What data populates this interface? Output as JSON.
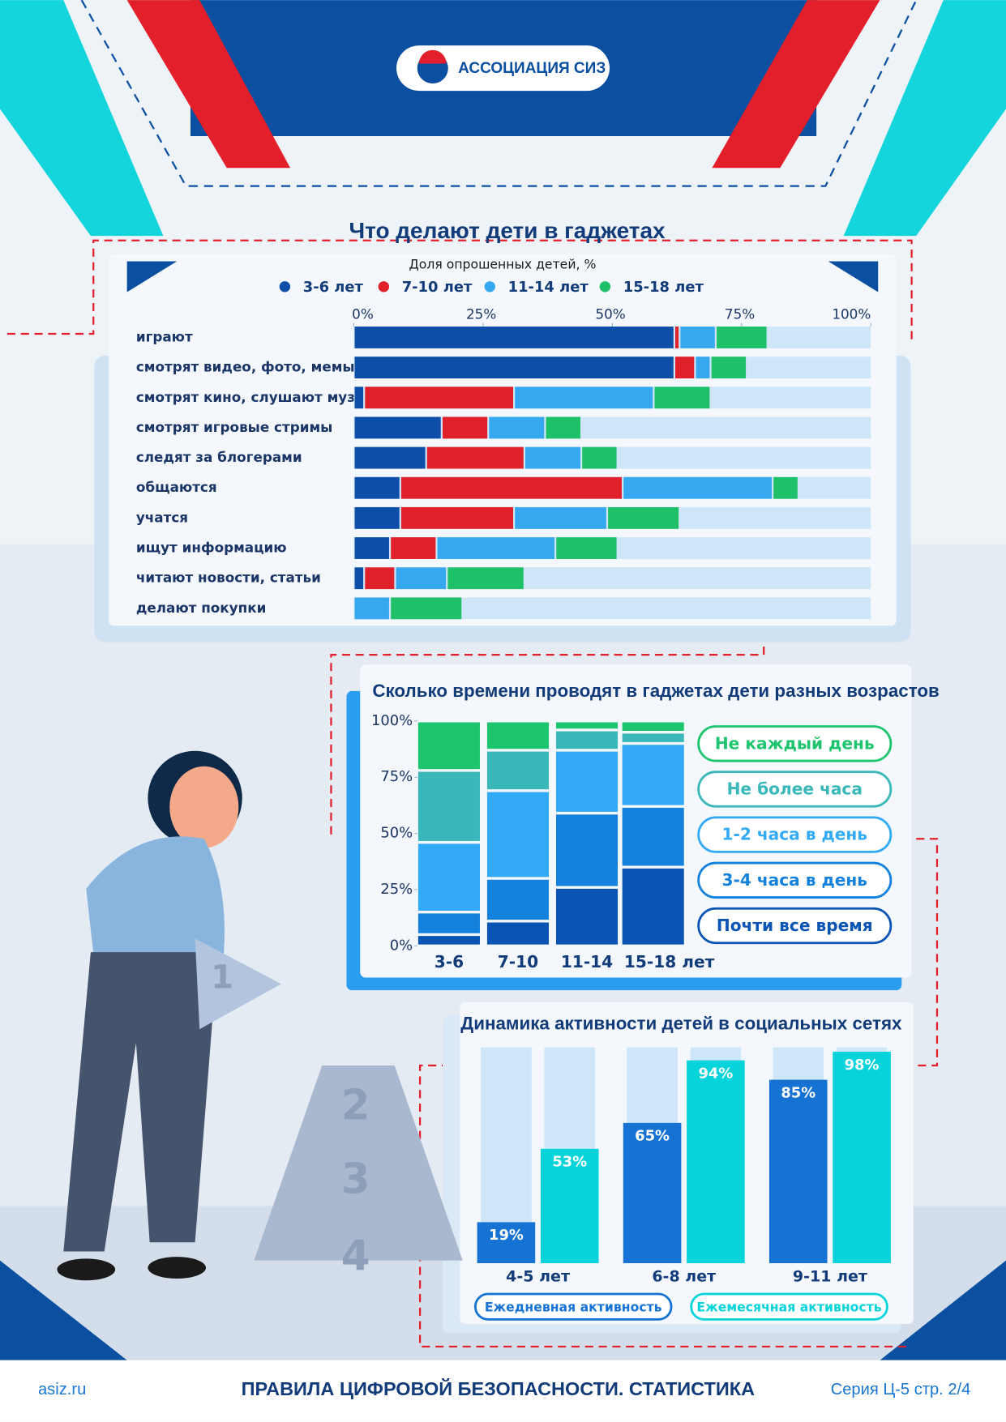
{
  "header": {
    "logo_text": "АССОЦИАЦИЯ СИЗ"
  },
  "illustration": {
    "pyramid_labels": [
      "1",
      "2",
      "3",
      "4"
    ]
  },
  "chart_data": [
    {
      "type": "bar",
      "orientation": "horizontal",
      "stacked": true,
      "title": "Что делают дети в гаджетах",
      "subtitle": "Доля опрошенных детей, %",
      "categories": [
        "играют",
        "смотрят видео, фото, мемы",
        "смотрят кино, слушают музыку",
        "смотрят игровые стримы",
        "следят за блогерами",
        "общаются",
        "учатся",
        "ищут информацию",
        "читают новости, статьи",
        "делают покупки"
      ],
      "series": [
        {
          "name": "3-6 лет",
          "color": "#0d4fa8",
          "values": [
            62,
            62,
            2,
            17,
            14,
            9,
            9,
            7,
            2,
            0
          ]
        },
        {
          "name": "7-10 лет",
          "color": "#e0212b",
          "values": [
            1,
            4,
            29,
            9,
            19,
            43,
            22,
            9,
            6,
            0
          ]
        },
        {
          "name": "11-14 лет",
          "color": "#35a8f0",
          "values": [
            7,
            3,
            27,
            11,
            11,
            29,
            18,
            23,
            10,
            7
          ]
        },
        {
          "name": "15-18 лет",
          "color": "#1fc06a",
          "values": [
            10,
            7,
            11,
            7,
            7,
            5,
            14,
            12,
            15,
            14
          ]
        }
      ],
      "xlim": [
        0,
        100
      ],
      "xticks": [
        {
          "value": 0,
          "label": "0%"
        },
        {
          "value": 25,
          "label": "25%"
        },
        {
          "value": 50,
          "label": "50%"
        },
        {
          "value": 75,
          "label": "75%"
        },
        {
          "value": 100,
          "label": "100%"
        }
      ]
    },
    {
      "type": "bar",
      "orientation": "vertical",
      "stacked": true,
      "title": "Сколько времени проводят в гаджетах дети разных возрастов",
      "categories": [
        "3-6",
        "7-10",
        "11-14",
        "15-18 лет"
      ],
      "series": [
        {
          "name": "Не каждый день",
          "color": "#1ec56e",
          "values": [
            22,
            13,
            4,
            5
          ]
        },
        {
          "name": "Не более часа",
          "color": "#3ab7b8",
          "values": [
            32,
            18,
            9,
            5
          ]
        },
        {
          "name": "1-2 часа в день",
          "color": "#33aaf5",
          "values": [
            31,
            39,
            28,
            28
          ]
        },
        {
          "name": "3-4 часа в день",
          "color": "#1482dc",
          "values": [
            10,
            19,
            33,
            27
          ]
        },
        {
          "name": "Почти все время",
          "color": "#0a55b3",
          "values": [
            5,
            11,
            26,
            35
          ]
        }
      ],
      "ylim": [
        0,
        100
      ],
      "yticks": [
        {
          "value": 0,
          "label": "0%"
        },
        {
          "value": 25,
          "label": "25%"
        },
        {
          "value": 50,
          "label": "50%"
        },
        {
          "value": 75,
          "label": "75%"
        },
        {
          "value": 100,
          "label": "100%"
        }
      ]
    },
    {
      "type": "bar",
      "orientation": "vertical",
      "stacked": false,
      "title": "Динамика активности детей в социальных сетях",
      "categories": [
        "4-5 лет",
        "6-8 лет",
        "9-11 лет"
      ],
      "series": [
        {
          "name": "Ежедневная активность",
          "color": "#1673d4",
          "values": [
            19,
            65,
            85
          ],
          "value_labels": [
            "19%",
            "65%",
            "85%"
          ]
        },
        {
          "name": "Ежемесячная активность",
          "color": "#07d3db",
          "values": [
            53,
            94,
            98
          ],
          "value_labels": [
            "53%",
            "94%",
            "98%"
          ]
        }
      ],
      "ylim": [
        0,
        100
      ]
    }
  ],
  "footer": {
    "site": "asiz.ru",
    "title": "ПРАВИЛА ЦИФРОВОЙ БЕЗОПАСНОСТИ. СТАТИСТИКА",
    "series": "Серия Ц-5 стр. 2/4"
  }
}
